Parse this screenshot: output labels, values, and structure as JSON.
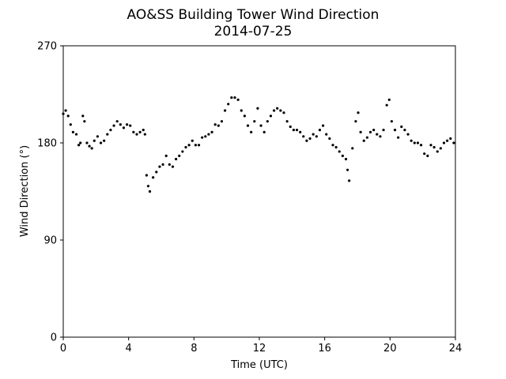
{
  "chart_data": {
    "type": "scatter",
    "title": "AO&SS Building Tower Wind Direction",
    "subtitle": "2014-07-25",
    "xlabel": "Time (UTC)",
    "ylabel": "Wind Direction (°)",
    "xlim": [
      0,
      24
    ],
    "ylim": [
      0,
      270
    ],
    "xticks": [
      0,
      4,
      8,
      12,
      16,
      20,
      24
    ],
    "yticks": [
      0,
      90,
      180,
      270
    ],
    "grid": false,
    "legend": "none",
    "marker_color": "#000000",
    "series": [
      {
        "points": [
          [
            0.0,
            207
          ],
          [
            0.15,
            210
          ],
          [
            0.3,
            205
          ],
          [
            0.45,
            197
          ],
          [
            0.6,
            190
          ],
          [
            0.8,
            188
          ],
          [
            0.95,
            178
          ],
          [
            1.05,
            180
          ],
          [
            1.2,
            205
          ],
          [
            1.3,
            200
          ],
          [
            1.45,
            180
          ],
          [
            1.6,
            177
          ],
          [
            1.75,
            175
          ],
          [
            1.9,
            182
          ],
          [
            2.1,
            186
          ],
          [
            2.3,
            180
          ],
          [
            2.5,
            182
          ],
          [
            2.7,
            188
          ],
          [
            2.9,
            192
          ],
          [
            3.1,
            196
          ],
          [
            3.3,
            200
          ],
          [
            3.5,
            197
          ],
          [
            3.7,
            194
          ],
          [
            3.9,
            197
          ],
          [
            4.1,
            196
          ],
          [
            4.3,
            190
          ],
          [
            4.5,
            188
          ],
          [
            4.7,
            190
          ],
          [
            4.9,
            192
          ],
          [
            5.0,
            188
          ],
          [
            5.1,
            150
          ],
          [
            5.2,
            140
          ],
          [
            5.3,
            135
          ],
          [
            5.5,
            148
          ],
          [
            5.7,
            153
          ],
          [
            5.9,
            158
          ],
          [
            6.1,
            160
          ],
          [
            6.3,
            168
          ],
          [
            6.5,
            160
          ],
          [
            6.7,
            158
          ],
          [
            6.9,
            165
          ],
          [
            7.1,
            168
          ],
          [
            7.3,
            172
          ],
          [
            7.5,
            176
          ],
          [
            7.7,
            178
          ],
          [
            7.9,
            182
          ],
          [
            8.1,
            178
          ],
          [
            8.3,
            178
          ],
          [
            8.5,
            185
          ],
          [
            8.7,
            186
          ],
          [
            8.9,
            188
          ],
          [
            9.1,
            190
          ],
          [
            9.3,
            197
          ],
          [
            9.5,
            196
          ],
          [
            9.7,
            200
          ],
          [
            9.9,
            210
          ],
          [
            10.1,
            216
          ],
          [
            10.3,
            222
          ],
          [
            10.5,
            222
          ],
          [
            10.7,
            220
          ],
          [
            10.9,
            210
          ],
          [
            11.1,
            205
          ],
          [
            11.3,
            196
          ],
          [
            11.5,
            190
          ],
          [
            11.7,
            200
          ],
          [
            11.9,
            212
          ],
          [
            12.1,
            196
          ],
          [
            12.3,
            190
          ],
          [
            12.5,
            200
          ],
          [
            12.7,
            205
          ],
          [
            12.9,
            210
          ],
          [
            13.1,
            212
          ],
          [
            13.3,
            210
          ],
          [
            13.5,
            208
          ],
          [
            13.7,
            200
          ],
          [
            13.9,
            195
          ],
          [
            14.1,
            192
          ],
          [
            14.3,
            192
          ],
          [
            14.5,
            190
          ],
          [
            14.7,
            186
          ],
          [
            14.9,
            182
          ],
          [
            15.1,
            184
          ],
          [
            15.3,
            188
          ],
          [
            15.5,
            186
          ],
          [
            15.7,
            192
          ],
          [
            15.9,
            196
          ],
          [
            16.1,
            188
          ],
          [
            16.3,
            184
          ],
          [
            16.5,
            178
          ],
          [
            16.7,
            176
          ],
          [
            16.9,
            172
          ],
          [
            17.1,
            168
          ],
          [
            17.3,
            165
          ],
          [
            17.4,
            155
          ],
          [
            17.5,
            145
          ],
          [
            17.7,
            175
          ],
          [
            17.9,
            200
          ],
          [
            18.05,
            208
          ],
          [
            18.2,
            190
          ],
          [
            18.4,
            182
          ],
          [
            18.6,
            185
          ],
          [
            18.8,
            190
          ],
          [
            19.0,
            192
          ],
          [
            19.2,
            188
          ],
          [
            19.4,
            186
          ],
          [
            19.6,
            192
          ],
          [
            19.8,
            215
          ],
          [
            19.95,
            220
          ],
          [
            20.1,
            200
          ],
          [
            20.3,
            192
          ],
          [
            20.5,
            185
          ],
          [
            20.7,
            195
          ],
          [
            20.9,
            192
          ],
          [
            21.1,
            188
          ],
          [
            21.3,
            182
          ],
          [
            21.5,
            180
          ],
          [
            21.7,
            180
          ],
          [
            21.9,
            178
          ],
          [
            22.1,
            170
          ],
          [
            22.3,
            168
          ],
          [
            22.5,
            178
          ],
          [
            22.7,
            176
          ],
          [
            22.9,
            172
          ],
          [
            23.1,
            175
          ],
          [
            23.3,
            180
          ],
          [
            23.5,
            182
          ],
          [
            23.7,
            184
          ],
          [
            23.9,
            180
          ]
        ]
      }
    ]
  }
}
